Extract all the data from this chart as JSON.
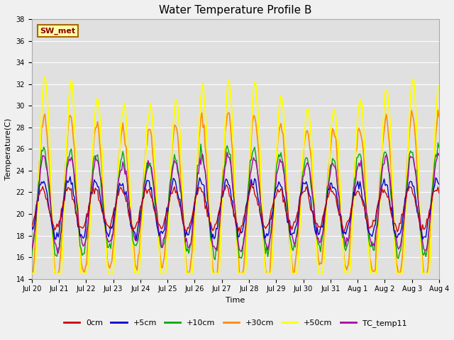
{
  "title": "Water Temperature Profile B",
  "xlabel": "Time",
  "ylabel": "Temperature(C)",
  "ylim": [
    14,
    38
  ],
  "yticks": [
    14,
    16,
    18,
    20,
    22,
    24,
    26,
    28,
    30,
    32,
    34,
    36,
    38
  ],
  "xtick_labels": [
    "Jul 20",
    "Jul 21",
    "Jul 22",
    "Jul 23",
    "Jul 24",
    "Jul 25",
    "Jul 26",
    "Jul 27",
    "Jul 28",
    "Jul 29",
    "Jul 30",
    "Jul 31",
    "Aug 1",
    "Aug 2",
    "Aug 3",
    "Aug 4"
  ],
  "annotation_text": "SW_met",
  "annotation_color": "#8B0000",
  "annotation_box_facecolor": "#FFFFAA",
  "annotation_box_edgecolor": "#AA6600",
  "series_colors": {
    "0cm": "#CC0000",
    "+5cm": "#0000CC",
    "+10cm": "#00AA00",
    "+30cm": "#FF8C00",
    "+50cm": "#FFFF00",
    "TC_temp11": "#AA00AA"
  },
  "series_linewidths": {
    "0cm": 1.0,
    "+5cm": 1.0,
    "+10cm": 1.0,
    "+30cm": 1.2,
    "+50cm": 1.5,
    "TC_temp11": 1.0
  },
  "fig_facecolor": "#F0F0F0",
  "ax_facecolor": "#E0E0E0",
  "grid_color": "#FFFFFF",
  "title_fontsize": 11,
  "label_fontsize": 8,
  "tick_fontsize": 7,
  "annot_fontsize": 8,
  "legend_fontsize": 8,
  "n_points": 372,
  "n_days": 15.5
}
